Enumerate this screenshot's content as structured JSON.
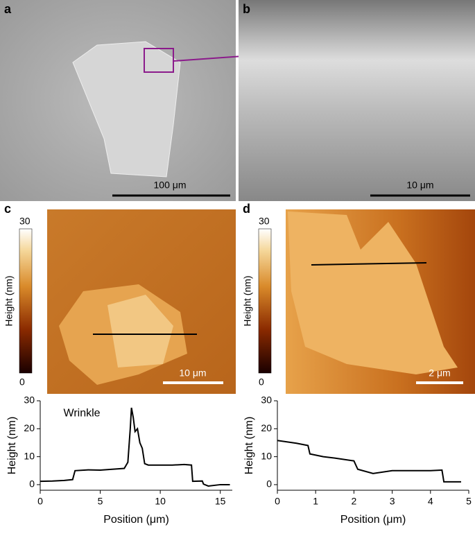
{
  "images": [
    {
      "label": "a",
      "scale_bar": "100 μm"
    },
    {
      "label": "b",
      "scale_bar": "10 μm"
    },
    {
      "label": "c",
      "scale_bar": "10 μm"
    },
    {
      "label": "d",
      "scale_bar": "2 μm"
    }
  ],
  "colorbars": [
    {
      "max": "30",
      "min": "0",
      "label": "Height (nm)"
    },
    {
      "max": "30",
      "min": "0",
      "label": "Height (nm)"
    }
  ],
  "chart_data": [
    {
      "type": "line",
      "xlabel": "Position (μm)",
      "ylabel": "Height (nm)",
      "annotation": "Wrinkle",
      "x": [
        0,
        1,
        2,
        2.7,
        2.9,
        4,
        5,
        6,
        7,
        7.3,
        7.5,
        7.6,
        7.75,
        7.9,
        8.1,
        8.3,
        8.5,
        8.7,
        9,
        10,
        11,
        12,
        12.6,
        12.7,
        13.5,
        13.6,
        14,
        15,
        15.8
      ],
      "series": [
        {
          "color": "#000000",
          "values": [
            1.2,
            1.3,
            1.5,
            1.8,
            5,
            5.3,
            5.2,
            5.5,
            5.8,
            8,
            20,
            27.5,
            24,
            19,
            20,
            15,
            13,
            7.5,
            7,
            7,
            7,
            7.2,
            7,
            1.2,
            1.3,
            0.2,
            -0.5,
            0,
            0
          ]
        }
      ],
      "xlim": [
        0,
        16
      ],
      "ylim": [
        -2,
        30
      ],
      "xticks": [
        0,
        5,
        10,
        15
      ],
      "yticks": [
        0,
        10,
        20,
        30
      ]
    },
    {
      "type": "line",
      "xlabel": "Position (μm)",
      "ylabel": "Height (nm)",
      "x": [
        0,
        0.5,
        0.8,
        0.85,
        1.2,
        1.5,
        2,
        2.1,
        2.5,
        3,
        3.5,
        4,
        4.3,
        4.35,
        4.8
      ],
      "series": [
        {
          "color": "#000000",
          "values": [
            15.8,
            14.8,
            14,
            11,
            10,
            9.5,
            8.5,
            5.5,
            4,
            5,
            5,
            5,
            5.2,
            1,
            1
          ]
        }
      ],
      "xlim": [
        0,
        5
      ],
      "ylim": [
        -2,
        30
      ],
      "xticks": [
        0,
        1,
        2,
        3,
        4,
        5
      ],
      "yticks": [
        0,
        10,
        20,
        30
      ]
    }
  ]
}
